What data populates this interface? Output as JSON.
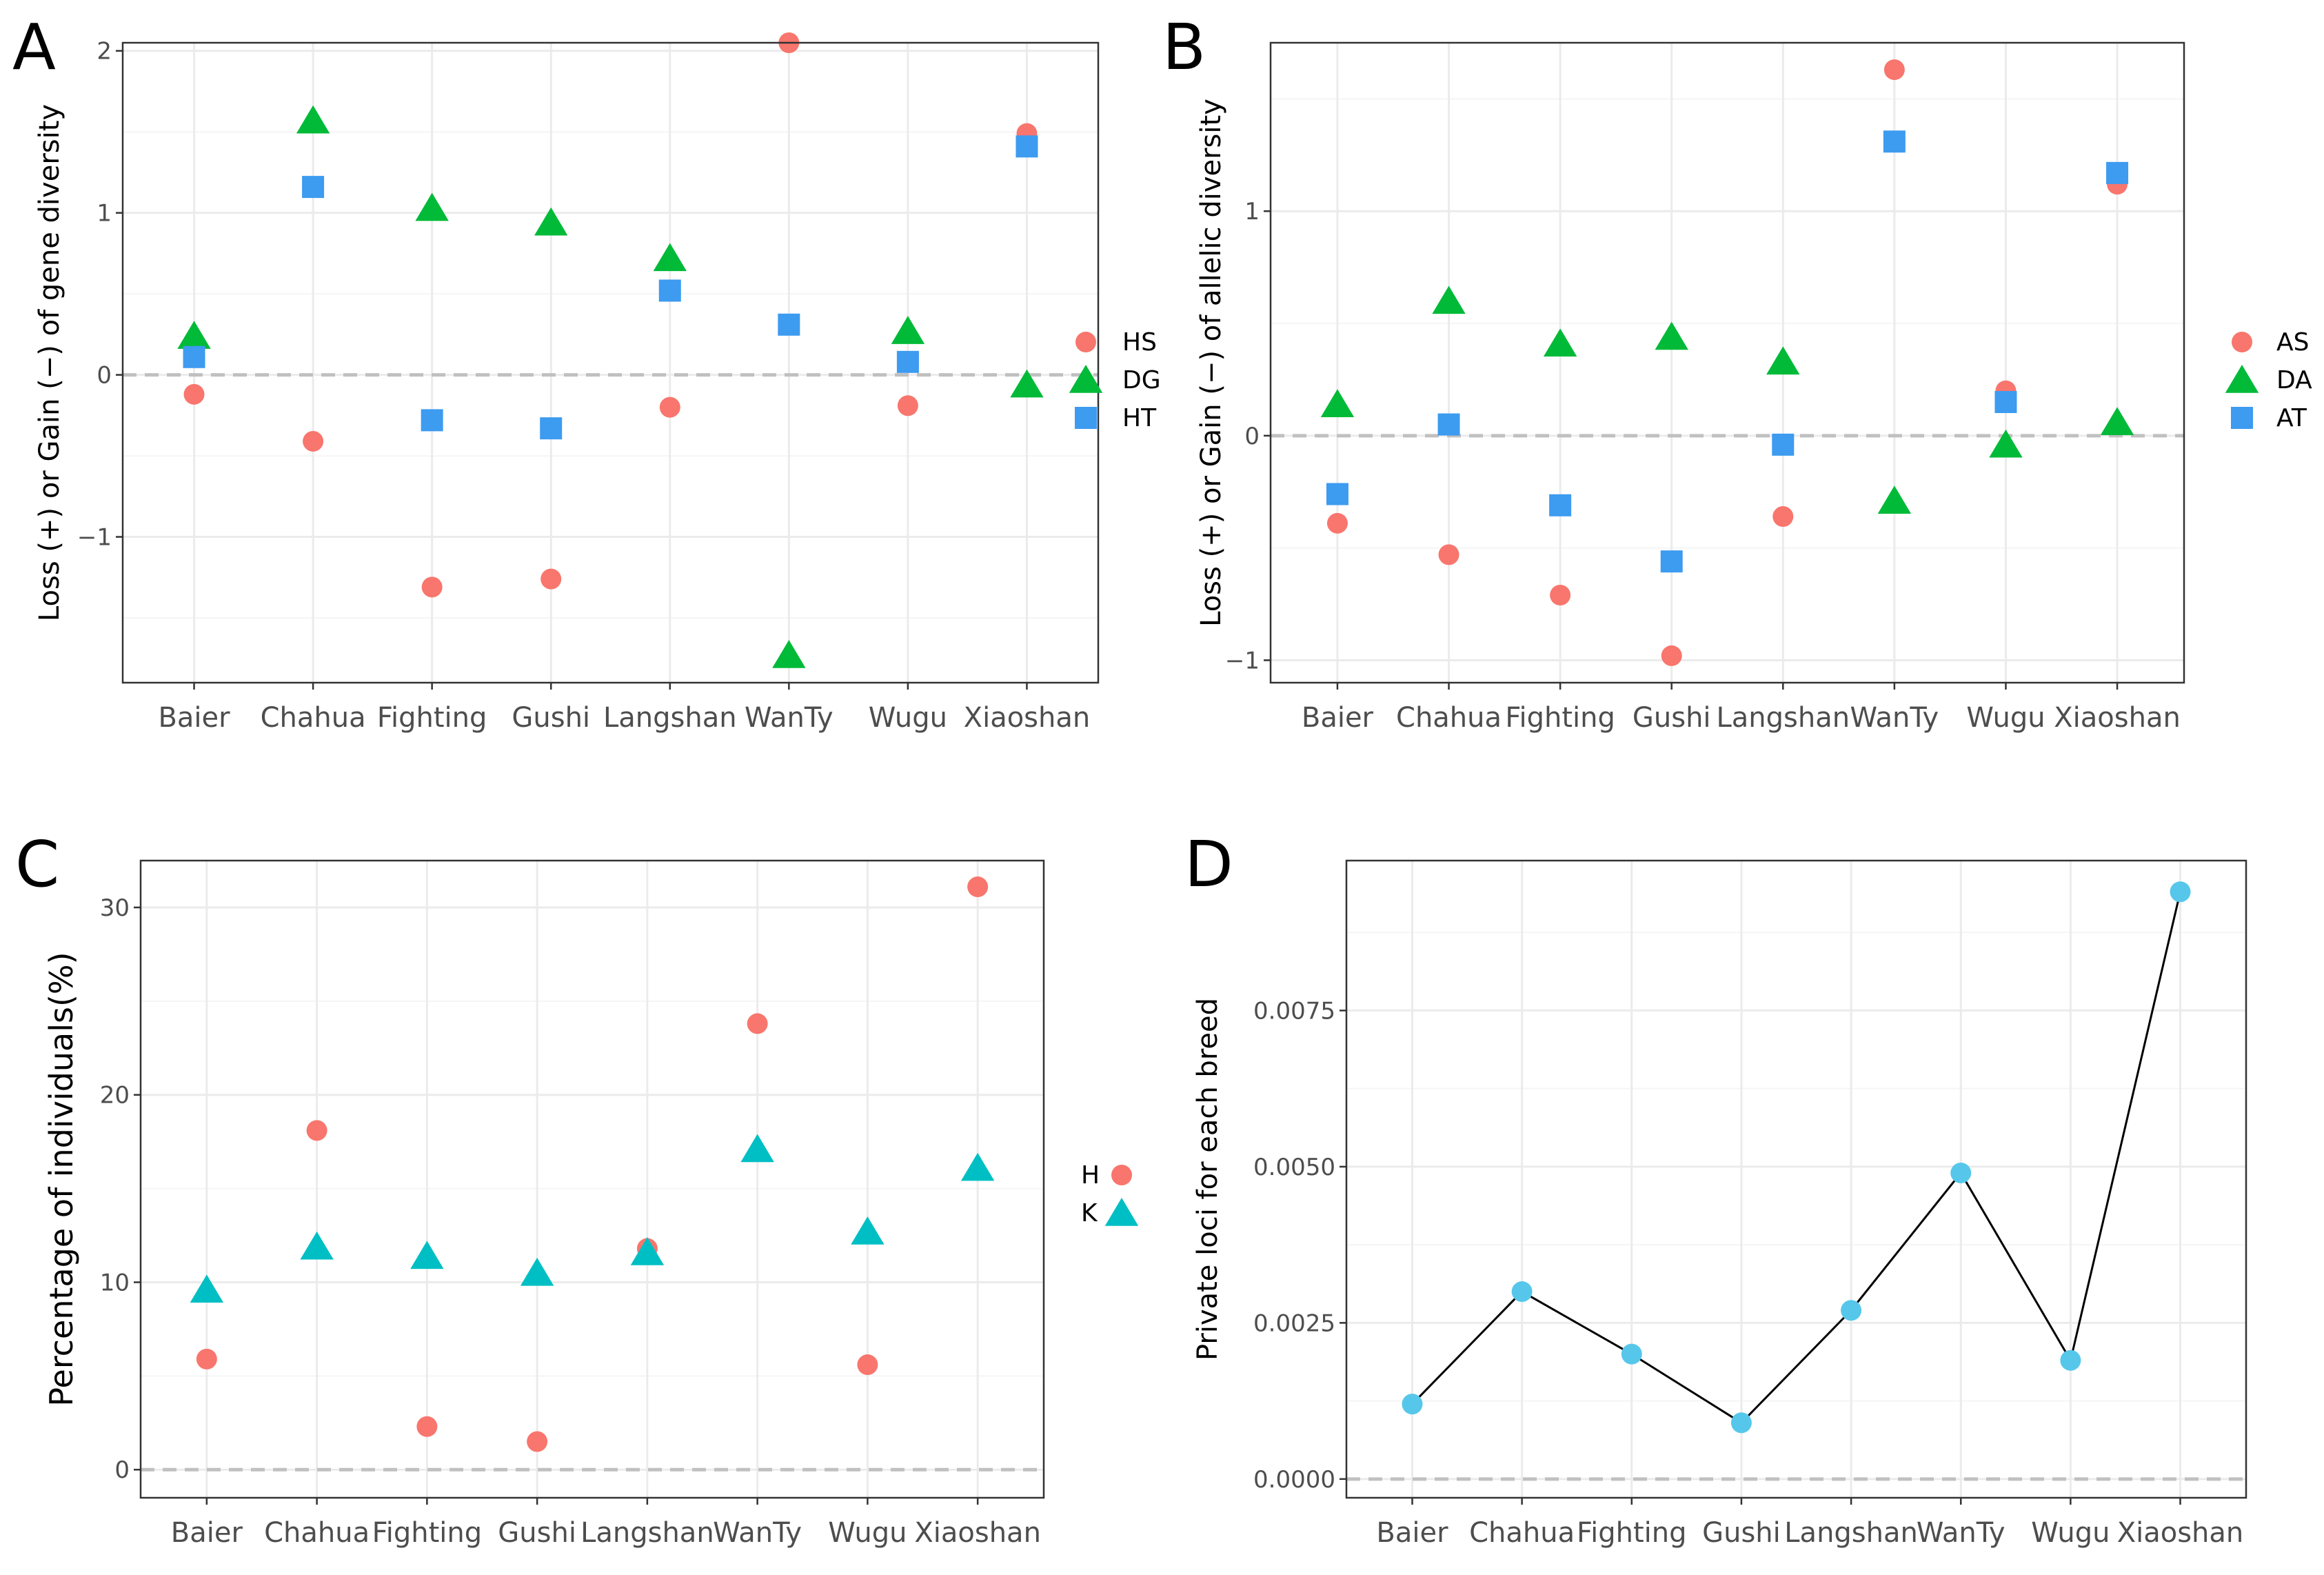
{
  "colors": {
    "red": "#f8766d",
    "green": "#00ba38",
    "blue": "#3d9bf0",
    "teal": "#00bfc4",
    "lightblue": "#56c7eb"
  },
  "chart_data": [
    {
      "id": "A",
      "type": "scatter",
      "panel_label": "A",
      "ylabel": "Loss (+) or Gain (−) of gene diversity",
      "categories": [
        "Baier",
        "Chahua",
        "Fighting",
        "Gushi",
        "Langshan",
        "WanTy",
        "Wugu",
        "Xiaoshan"
      ],
      "ylim": [
        -1.9,
        2.05
      ],
      "yticks": [
        -1,
        0,
        1,
        2
      ],
      "ytick_labels": [
        "−1",
        "0",
        "1",
        "2"
      ],
      "series": [
        {
          "name": "HS",
          "shape": "circle",
          "color": "#f8766d",
          "values": [
            -0.12,
            -0.41,
            -1.31,
            -1.26,
            -0.2,
            2.05,
            -0.19,
            1.49
          ]
        },
        {
          "name": "DG",
          "shape": "triangle",
          "color": "#00ba38",
          "values": [
            0.24,
            1.57,
            1.03,
            0.94,
            0.72,
            -1.73,
            0.27,
            -0.06
          ]
        },
        {
          "name": "HT",
          "shape": "square",
          "color": "#3d9bf0",
          "values": [
            0.11,
            1.16,
            -0.28,
            -0.33,
            0.52,
            0.31,
            0.08,
            1.41
          ]
        }
      ]
    },
    {
      "id": "B",
      "type": "scatter",
      "panel_label": "B",
      "ylabel": "Loss (+) or Gain (−) of  allelic diversity",
      "categories": [
        "Baier",
        "Chahua",
        "Fighting",
        "Gushi",
        "Langshan",
        "WanTy",
        "Wugu",
        "Xiaoshan"
      ],
      "ylim": [
        -1.1,
        1.75
      ],
      "yticks": [
        -1,
        0,
        1
      ],
      "ytick_labels": [
        "−1",
        "0",
        "1"
      ],
      "series": [
        {
          "name": "AS",
          "shape": "circle",
          "color": "#f8766d",
          "values": [
            -0.39,
            -0.53,
            -0.71,
            -0.98,
            -0.36,
            1.63,
            0.2,
            1.12
          ]
        },
        {
          "name": "DA",
          "shape": "triangle",
          "color": "#00ba38",
          "values": [
            0.14,
            0.6,
            0.41,
            0.44,
            0.33,
            -0.29,
            -0.04,
            0.06
          ]
        },
        {
          "name": "AT",
          "shape": "square",
          "color": "#3d9bf0",
          "values": [
            -0.26,
            0.05,
            -0.31,
            -0.56,
            -0.04,
            1.31,
            0.15,
            1.17
          ]
        }
      ]
    },
    {
      "id": "C",
      "type": "scatter",
      "panel_label": "C",
      "ylabel": "Percentage of individuals(%)",
      "categories": [
        "Baier",
        "Chahua",
        "Fighting",
        "Gushi",
        "Langshan",
        "WanTy",
        "Wugu",
        "Xiaoshan"
      ],
      "ylim": [
        -1.5,
        32.5
      ],
      "yticks": [
        0,
        10,
        20,
        30
      ],
      "ytick_labels": [
        "0",
        "10",
        "20",
        "30"
      ],
      "series": [
        {
          "name": "H",
          "shape": "circle",
          "color": "#f8766d",
          "values": [
            5.9,
            18.1,
            2.3,
            1.5,
            11.8,
            23.8,
            5.6,
            31.1
          ]
        },
        {
          "name": "K",
          "shape": "triangle",
          "color": "#00bfc4",
          "values": [
            9.6,
            11.9,
            11.4,
            10.5,
            11.6,
            17.1,
            12.7,
            16.1
          ]
        }
      ]
    },
    {
      "id": "D",
      "type": "line",
      "panel_label": "D",
      "ylabel": "Private loci for each breed",
      "categories": [
        "Baier",
        "Chahua",
        "Fighting",
        "Gushi",
        "Langshan",
        "WanTy",
        "Wugu",
        "Xiaoshan"
      ],
      "ylim": [
        -0.0003,
        0.0099
      ],
      "yticks": [
        0,
        0.0025,
        0.005,
        0.0075
      ],
      "ytick_labels": [
        "0.0000",
        "0.0025",
        "0.0050",
        "0.0075"
      ],
      "series": [
        {
          "name": "Private loci",
          "shape": "circle",
          "color": "#56c7eb",
          "values": [
            0.0012,
            0.003,
            0.002,
            0.0009,
            0.0027,
            0.0049,
            0.0019,
            0.0094
          ]
        }
      ]
    }
  ]
}
